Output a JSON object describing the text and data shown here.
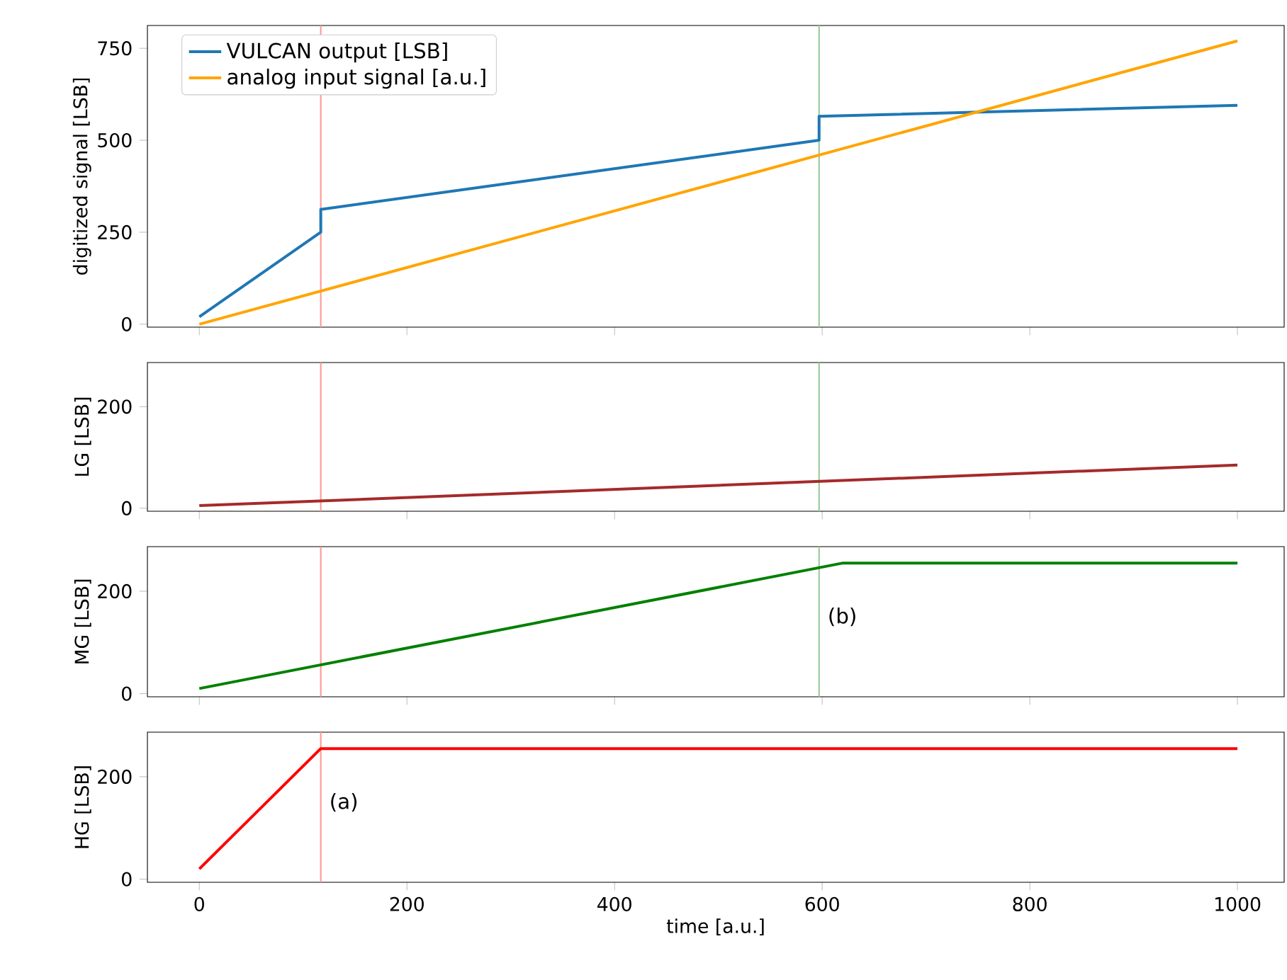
{
  "chart_data": [
    {
      "type": "line",
      "ylabel": "digitized signal [LSB]",
      "xlim": [
        -50,
        1045
      ],
      "xticks": [
        0,
        200,
        400,
        600,
        800,
        1000
      ],
      "ylim": [
        -8,
        812
      ],
      "yticks": [
        0,
        250,
        500,
        750
      ],
      "tick_labels": "y",
      "legend": "top left",
      "series": [
        {
          "name": "VULCAN output [LSB]",
          "color": "#1f77b4",
          "x": [
            0,
            117,
            117,
            597,
            597,
            1000
          ],
          "values": [
            20,
            250,
            312,
            500,
            565,
            595
          ]
        },
        {
          "name": "analog input signal [a.u.]",
          "color": "#ffa500",
          "x": [
            0,
            1000
          ],
          "values": [
            0,
            770
          ]
        }
      ],
      "ref_lines": [
        {
          "axis": "x",
          "value": 117,
          "color": "#ff9999"
        },
        {
          "axis": "x",
          "value": 597,
          "color": "#99cc99"
        }
      ]
    },
    {
      "type": "line",
      "ylabel": "LG [LSB]",
      "xlim": [
        -50,
        1045
      ],
      "xticks": [
        0,
        200,
        400,
        600,
        800,
        1000
      ],
      "ylim": [
        -6,
        287
      ],
      "yticks": [
        0,
        200
      ],
      "tick_labels": "y",
      "series": [
        {
          "color": "#a52a2a",
          "x": [
            0,
            1000
          ],
          "values": [
            5,
            85
          ]
        }
      ],
      "ref_lines": [
        {
          "axis": "x",
          "value": 117,
          "color": "#ff9999"
        },
        {
          "axis": "x",
          "value": 597,
          "color": "#99cc99"
        }
      ]
    },
    {
      "type": "line",
      "ylabel": "MG [LSB]",
      "xlim": [
        -50,
        1045
      ],
      "xticks": [
        0,
        200,
        400,
        600,
        800,
        1000
      ],
      "ylim": [
        -6,
        287
      ],
      "yticks": [
        0,
        200
      ],
      "tick_labels": "y",
      "series": [
        {
          "color": "#008000",
          "x": [
            0,
            620,
            1000
          ],
          "values": [
            10,
            255,
            255
          ]
        }
      ],
      "ref_lines": [
        {
          "axis": "x",
          "value": 117,
          "color": "#ff9999"
        },
        {
          "axis": "x",
          "value": 597,
          "color": "#99cc99"
        }
      ],
      "annotations": [
        {
          "text": "(b)",
          "x": 597,
          "y": 150
        }
      ]
    },
    {
      "type": "line",
      "xlabel": "time [a.u.]",
      "ylabel": "HG [LSB]",
      "xlim": [
        -50,
        1045
      ],
      "xticks": [
        0,
        200,
        400,
        600,
        800,
        1000
      ],
      "ylim": [
        -6,
        287
      ],
      "yticks": [
        0,
        200
      ],
      "series": [
        {
          "color": "#ff0000",
          "x": [
            0,
            117,
            1000
          ],
          "values": [
            20,
            255,
            255
          ]
        }
      ],
      "ref_lines": [
        {
          "axis": "x",
          "value": 117,
          "color": "#ff9999"
        }
      ],
      "annotations": [
        {
          "text": "(a)",
          "x": 117,
          "y": 150
        }
      ]
    }
  ]
}
